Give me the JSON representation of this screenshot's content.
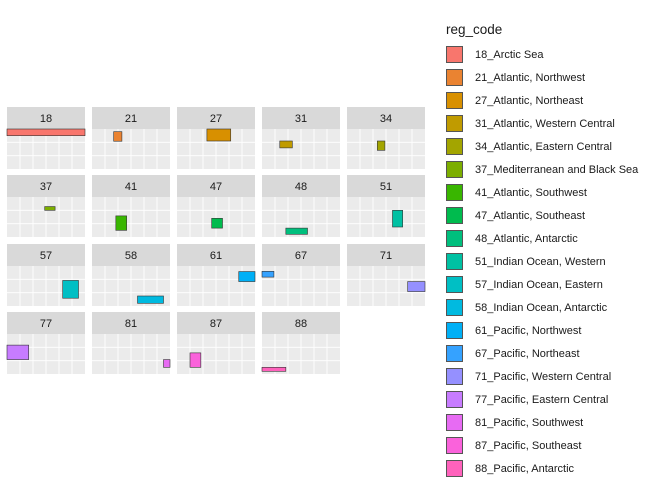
{
  "chart_data": {
    "type": "map-facets",
    "legend": {
      "title": "reg_code",
      "placement": "right",
      "entries": [
        {
          "label": "18_Arctic Sea",
          "color": "#F8766D"
        },
        {
          "label": "21_Atlantic, Northwest",
          "color": "#EA8331"
        },
        {
          "label": "27_Atlantic, Northeast",
          "color": "#D89000"
        },
        {
          "label": "31_Atlantic, Western Central",
          "color": "#C09B00"
        },
        {
          "label": "34_Atlantic, Eastern Central",
          "color": "#A3A500"
        },
        {
          "label": "37_Mediterranean and Black Sea",
          "color": "#7CAE00"
        },
        {
          "label": "41_Atlantic, Southwest",
          "color": "#39B600"
        },
        {
          "label": "47_Atlantic, Southeast",
          "color": "#00BB4E"
        },
        {
          "label": "48_Atlantic, Antarctic",
          "color": "#00BF7D"
        },
        {
          "label": "51_Indian Ocean, Western",
          "color": "#00C1A3"
        },
        {
          "label": "57_Indian Ocean, Eastern",
          "color": "#00BFC4"
        },
        {
          "label": "58_Indian Ocean, Antarctic",
          "color": "#00BAE0"
        },
        {
          "label": "61_Pacific, Northwest",
          "color": "#00B0F6"
        },
        {
          "label": "67_Pacific, Northeast",
          "color": "#35A2FF"
        },
        {
          "label": "71_Pacific, Western Central",
          "color": "#9590FF"
        },
        {
          "label": "77_Pacific, Eastern Central",
          "color": "#C77CFF"
        },
        {
          "label": "81_Pacific, Southwest",
          "color": "#E76BF3"
        },
        {
          "label": "87_Pacific, Southeast",
          "color": "#FA62DB"
        },
        {
          "label": "88_Pacific, Antarctic",
          "color": "#FF62BC"
        }
      ]
    },
    "grid": true,
    "ncol": 5,
    "facets": [
      {
        "code": "18",
        "legend_index": 0,
        "region": {
          "lon": [
            -180,
            180
          ],
          "lat": [
            60,
            90
          ]
        }
      },
      {
        "code": "21",
        "legend_index": 1,
        "region": {
          "lon": [
            -80,
            -42
          ],
          "lat": [
            35,
            78
          ]
        }
      },
      {
        "code": "27",
        "legend_index": 2,
        "region": {
          "lon": [
            -42,
            68
          ],
          "lat": [
            36,
            90
          ]
        }
      },
      {
        "code": "31",
        "legend_index": 3,
        "region": {
          "lon": [
            -98,
            -40
          ],
          "lat": [
            5,
            36
          ]
        }
      },
      {
        "code": "34",
        "legend_index": 4,
        "region": {
          "lon": [
            -40,
            -5
          ],
          "lat": [
            -6,
            36
          ]
        }
      },
      {
        "code": "37",
        "legend_index": 5,
        "region": {
          "lon": [
            -6,
            42
          ],
          "lat": [
            30,
            47
          ]
        }
      },
      {
        "code": "41",
        "legend_index": 6,
        "region": {
          "lon": [
            -70,
            -20
          ],
          "lat": [
            -60,
            5
          ]
        }
      },
      {
        "code": "47",
        "legend_index": 7,
        "region": {
          "lon": [
            -20,
            30
          ],
          "lat": [
            -50,
            -6
          ]
        }
      },
      {
        "code": "48",
        "legend_index": 8,
        "region": {
          "lon": [
            -70,
            30
          ],
          "lat": [
            -78,
            -50
          ]
        }
      },
      {
        "code": "51",
        "legend_index": 9,
        "region": {
          "lon": [
            30,
            77
          ],
          "lat": [
            -45,
            30
          ]
        }
      },
      {
        "code": "57",
        "legend_index": 10,
        "region": {
          "lon": [
            77,
            150
          ],
          "lat": [
            -55,
            25
          ]
        }
      },
      {
        "code": "58",
        "legend_index": 11,
        "region": {
          "lon": [
            30,
            150
          ],
          "lat": [
            -78,
            -45
          ]
        }
      },
      {
        "code": "61",
        "legend_index": 12,
        "region": {
          "lon": [
            105,
            180
          ],
          "lat": [
            20,
            65
          ]
        }
      },
      {
        "code": "67",
        "legend_index": 13,
        "region": {
          "lon": [
            -180,
            -125
          ],
          "lat": [
            40,
            66
          ]
        }
      },
      {
        "code": "71",
        "legend_index": 14,
        "region": {
          "lon": [
            100,
            180
          ],
          "lat": [
            -25,
            20
          ]
        }
      },
      {
        "code": "77",
        "legend_index": 15,
        "region": {
          "lon": [
            -180,
            -80
          ],
          "lat": [
            -25,
            40
          ]
        }
      },
      {
        "code": "81",
        "legend_index": 16,
        "region": {
          "lon": [
            150,
            180
          ],
          "lat": [
            -60,
            -25
          ]
        }
      },
      {
        "code": "87",
        "legend_index": 17,
        "region": {
          "lon": [
            -120,
            -70
          ],
          "lat": [
            -60,
            5
          ]
        }
      },
      {
        "code": "88",
        "legend_index": 18,
        "region": {
          "lon": [
            -180,
            -70
          ],
          "lat": [
            -78,
            -60
          ]
        }
      }
    ]
  }
}
